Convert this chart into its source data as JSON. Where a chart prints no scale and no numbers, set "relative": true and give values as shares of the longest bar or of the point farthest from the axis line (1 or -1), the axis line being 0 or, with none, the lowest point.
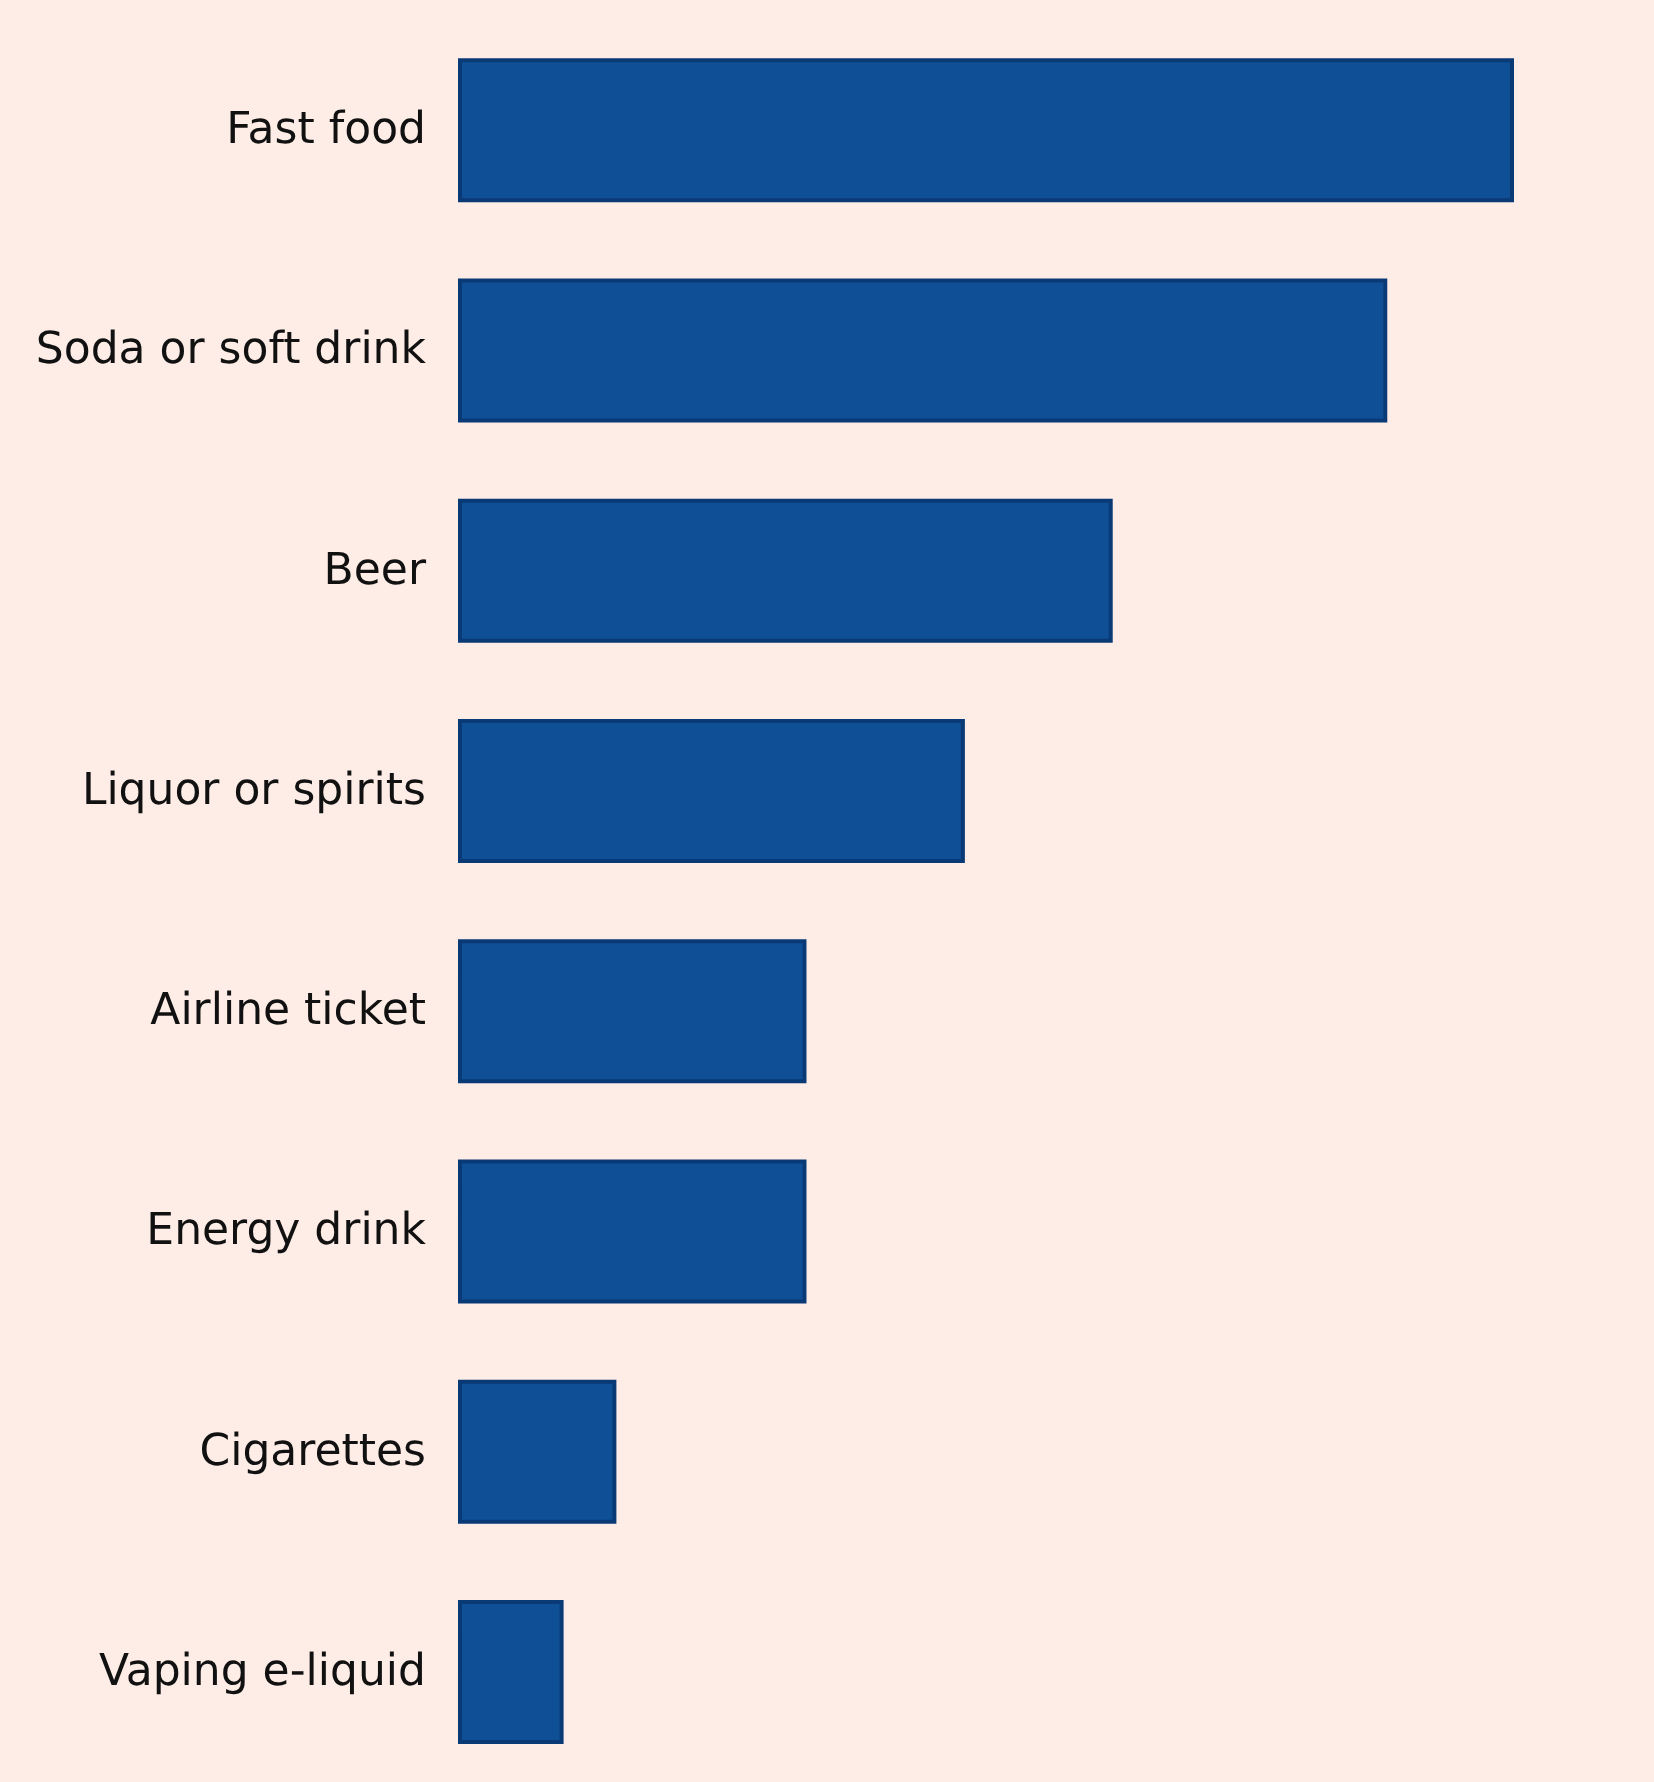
{
  "chart_data": {
    "type": "bar",
    "orientation": "horizontal",
    "relative": true,
    "categories": [
      "Fast food",
      "Soda or soft drink",
      "Beer",
      "Liquor or spirits",
      "Airline ticket",
      "Energy drink",
      "Cigarettes",
      "Vaping e-liquid"
    ],
    "values": [
      1,
      0.88,
      0.62,
      0.48,
      0.33,
      0.33,
      0.15,
      0.1
    ],
    "color": "#0f4f96"
  }
}
